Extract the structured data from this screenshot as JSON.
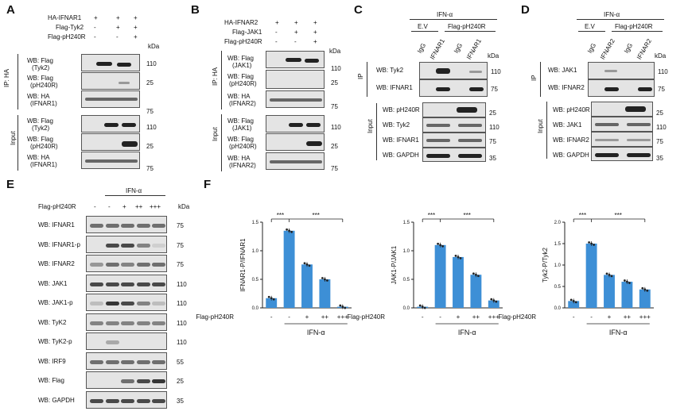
{
  "panels": {
    "A": {
      "letter": "A",
      "rows": [
        "HA-IFNAR1",
        "Flag-Tyk2",
        "Flag-pH240R"
      ],
      "signs": [
        [
          "+",
          "+",
          "+"
        ],
        [
          "-",
          "+",
          "+"
        ],
        [
          "-",
          "-",
          "+"
        ]
      ],
      "kda": "kDa",
      "side1": "IP: HA",
      "side2": "Input",
      "blots": [
        {
          "l1": "WB: Flag",
          "l2": "(Tyk2)",
          "m": "110"
        },
        {
          "l1": "WB: Flag",
          "l2": "(pH240R)",
          "m": "25"
        },
        {
          "l1": "WB: HA",
          "l2": "(IFNAR1)",
          "m": "75"
        },
        {
          "l1": "WB: Flag",
          "l2": "(Tyk2)",
          "m": "110"
        },
        {
          "l1": "WB: Flag",
          "l2": "(pH240R)",
          "m": "25"
        },
        {
          "l1": "WB: HA",
          "l2": "(IFNAR1)",
          "m": "75"
        }
      ]
    },
    "B": {
      "letter": "B",
      "rows": [
        "HA-IFNAR2",
        "Flag-JAK1",
        "Flag-pH240R"
      ],
      "signs": [
        [
          "+",
          "+",
          "+"
        ],
        [
          "-",
          "+",
          "+"
        ],
        [
          "-",
          "-",
          "+"
        ]
      ],
      "kda": "kDa",
      "side1": "IP: HA",
      "side2": "Input",
      "blots": [
        {
          "l1": "WB: Flag",
          "l2": "(JAK1)",
          "m": "110"
        },
        {
          "l1": "WB: Flag",
          "l2": "(pH240R)",
          "m": "25"
        },
        {
          "l1": "WB: HA",
          "l2": "(IFNAR2)",
          "m": "75"
        },
        {
          "l1": "WB: Flag",
          "l2": "(JAK1)",
          "m": "110"
        },
        {
          "l1": "WB: Flag",
          "l2": "(pH240R)",
          "m": "25"
        },
        {
          "l1": "WB: HA",
          "l2": "(IFNAR2)",
          "m": "75"
        }
      ]
    },
    "C": {
      "letter": "C",
      "treat": "IFN-α",
      "groups": [
        "E.V",
        "Flag-pH240R"
      ],
      "lanes": [
        "IgG",
        "IFNAR1",
        "IgG",
        "IFNAR1"
      ],
      "kda": "kDa",
      "side1": "IP",
      "side2": "Input",
      "blots": [
        {
          "l": "WB: Tyk2",
          "m": "110"
        },
        {
          "l": "WB: IFNAR1",
          "m": "75"
        },
        {
          "l": "WB: pH240R",
          "m": "25"
        },
        {
          "l": "WB: Tyk2",
          "m": "110"
        },
        {
          "l": "WB: IFNAR1",
          "m": "75"
        },
        {
          "l": "WB: GAPDH",
          "m": "35"
        }
      ]
    },
    "D": {
      "letter": "D",
      "treat": "IFN-α",
      "groups": [
        "E.V",
        "Flag-pH240R"
      ],
      "lanes": [
        "IgG",
        "IFNAR2",
        "IgG",
        "IFNAR2"
      ],
      "kda": "kDa",
      "side1": "IP",
      "side2": "Input",
      "blots": [
        {
          "l": "WB: JAK1",
          "m": "110"
        },
        {
          "l": "WB: IFNAR2",
          "m": "75"
        },
        {
          "l": "WB: pH240R",
          "m": "25"
        },
        {
          "l": "WB: JAK1",
          "m": "110"
        },
        {
          "l": "WB: IFNAR2",
          "m": "75"
        },
        {
          "l": "WB: GAPDH",
          "m": "35"
        }
      ]
    },
    "E": {
      "letter": "E",
      "treat": "IFN-α",
      "rowlabel": "Flag-pH240R",
      "signs": [
        "-",
        "-",
        "+",
        "++",
        "+++"
      ],
      "kda": "kDa",
      "blots": [
        {
          "l": "WB: IFNAR1",
          "m": "75"
        },
        {
          "l": "WB: IFNAR1-p",
          "m": "75"
        },
        {
          "l": "WB: IFNAR2",
          "m": "75"
        },
        {
          "l": "WB: JAK1",
          "m": "110"
        },
        {
          "l": "WB: JAK1-p",
          "m": "110"
        },
        {
          "l": "WB: TyK2",
          "m": "110"
        },
        {
          "l": "WB: TyK2-p",
          "m": "110"
        },
        {
          "l": "WB: IRF9",
          "m": "55"
        },
        {
          "l": "WB: Flag",
          "m": "25"
        },
        {
          "l": "WB: GAPDH",
          "m": "35"
        }
      ]
    },
    "F": {
      "letter": "F",
      "rowlabel": "Flag-pH240R",
      "signs": [
        "-",
        "-",
        "+",
        "++",
        "+++"
      ],
      "treat": "IFN-α",
      "sig": "***"
    }
  },
  "chart_data": [
    {
      "type": "bar",
      "ylabel": "IFNAR1-P/IFNAR1",
      "categories": [
        "-",
        "-",
        "+",
        "++",
        "+++"
      ],
      "values": [
        0.17,
        1.35,
        0.76,
        0.5,
        0.02
      ],
      "ylim": [
        0,
        1.5
      ],
      "yticks": [
        "0.0",
        "0.5",
        "1.0",
        "1.5"
      ],
      "color": "#3d8fd6",
      "sig": [
        "***",
        "***"
      ]
    },
    {
      "type": "bar",
      "ylabel": "JAK1-P/JAK1",
      "categories": [
        "-",
        "-",
        "+",
        "++",
        "+++"
      ],
      "values": [
        0.02,
        1.1,
        0.89,
        0.58,
        0.13
      ],
      "ylim": [
        0,
        1.5
      ],
      "yticks": [
        "0.0",
        "0.5",
        "1.0",
        "1.5"
      ],
      "color": "#3d8fd6",
      "sig": [
        "***",
        "***"
      ]
    },
    {
      "type": "bar",
      "ylabel": "Tyk2-P/Tyk2",
      "categories": [
        "-",
        "-",
        "+",
        "++",
        "+++"
      ],
      "values": [
        0.16,
        1.5,
        0.77,
        0.61,
        0.43
      ],
      "ylim": [
        0,
        2.0
      ],
      "yticks": [
        "0.0",
        "0.5",
        "1.0",
        "1.5",
        "2.0"
      ],
      "color": "#3d8fd6",
      "sig": [
        "***",
        "***"
      ]
    }
  ]
}
